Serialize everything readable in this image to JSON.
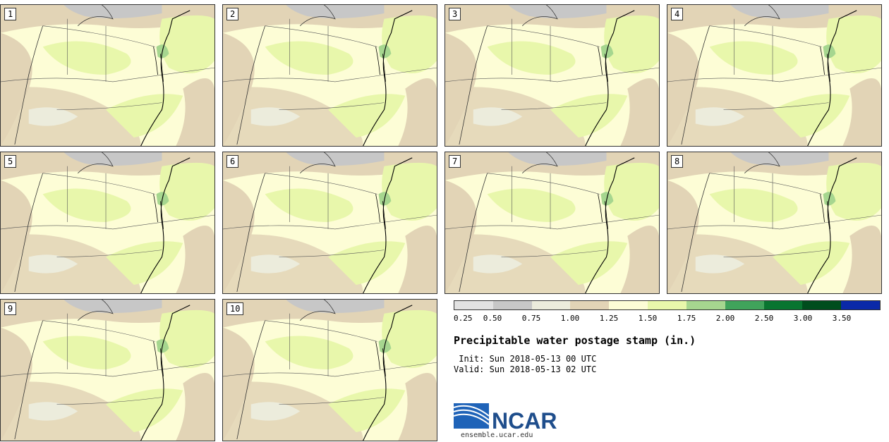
{
  "panels": [
    {
      "label": "1"
    },
    {
      "label": "2"
    },
    {
      "label": "3"
    },
    {
      "label": "4"
    },
    {
      "label": "5"
    },
    {
      "label": "6"
    },
    {
      "label": "7"
    },
    {
      "label": "8"
    },
    {
      "label": "9"
    },
    {
      "label": "10"
    }
  ],
  "colorbar": {
    "colors": [
      "#e2e2e2",
      "#c7c7c7",
      "#ececdc",
      "#e2d4b6",
      "#fdfdd6",
      "#e8f7ab",
      "#a6d68f",
      "#40a35b",
      "#087530",
      "#004d1d",
      "#0a29a8"
    ],
    "ticks": [
      "0.25",
      "0.50",
      "0.75",
      "1.00",
      "1.25",
      "1.50",
      "1.75",
      "2.00",
      "2.50",
      "3.00",
      "3.50"
    ]
  },
  "title": "Precipitable water postage stamp (in.)",
  "init_line": " Init: Sun 2018-05-13 00 UTC",
  "valid_line": "Valid: Sun 2018-05-13 02 UTC",
  "logo": {
    "text": "NCAR",
    "url": "ensemble.ucar.edu"
  }
}
